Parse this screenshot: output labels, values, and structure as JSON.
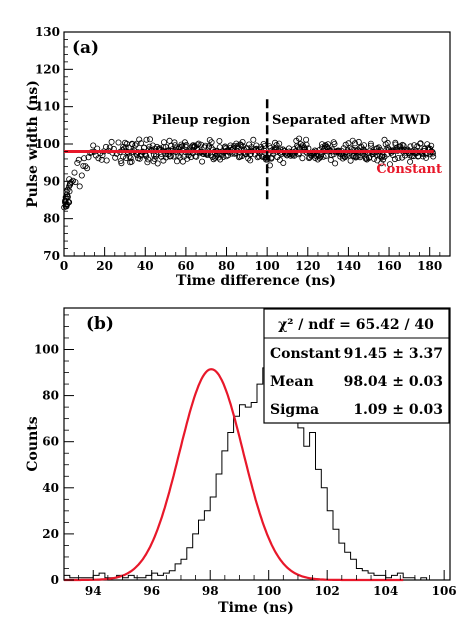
{
  "chart_data": [
    {
      "type": "scatter",
      "panel_label": "(a)",
      "xlabel": "Time difference (ns)",
      "ylabel": "Pulse width (ns)",
      "xlim": [
        0,
        190
      ],
      "ylim": [
        70,
        130
      ],
      "xticks": [
        0,
        20,
        40,
        60,
        80,
        100,
        120,
        140,
        160,
        180
      ],
      "yticks": [
        70,
        80,
        90,
        100,
        110,
        120,
        130
      ],
      "annotations": {
        "left_region": "Pileup region",
        "right_region": "Separated after MWD"
      },
      "separator_x": 100,
      "separator_y_range": [
        85,
        112
      ],
      "constant_line": {
        "label": "Constant",
        "value": 98.0,
        "x_range": [
          0,
          182
        ],
        "color": "#e8182a"
      },
      "marker": "open-circle",
      "series": [
        {
          "x_range": [
            0,
            182
          ],
          "trend": [
            {
              "x": 0.5,
              "y": 83
            },
            {
              "x": 1,
              "y": 84
            },
            {
              "x": 2,
              "y": 86
            },
            {
              "x": 3,
              "y": 88
            },
            {
              "x": 5,
              "y": 91
            },
            {
              "x": 8,
              "y": 94
            },
            {
              "x": 12,
              "y": 96
            },
            {
              "x": 18,
              "y": 97.3
            },
            {
              "x": 25,
              "y": 97.8
            },
            {
              "x": 40,
              "y": 98
            },
            {
              "x": 182,
              "y": 98
            }
          ],
          "spread": 2.2
        }
      ]
    },
    {
      "type": "histogram",
      "panel_label": "(b)",
      "xlabel": "Time (ns)",
      "ylabel": "Counts",
      "xlim": [
        93,
        106.2
      ],
      "ylim": [
        0,
        118
      ],
      "xticks": [
        94,
        96,
        98,
        100,
        102,
        104,
        106
      ],
      "yticks": [
        0,
        20,
        40,
        60,
        80,
        100
      ],
      "bin_start": 93.0,
      "bin_width": 0.2,
      "counts": [
        2,
        1,
        1,
        1,
        1,
        2,
        3,
        1,
        1,
        2,
        1,
        2,
        1,
        1,
        2,
        3,
        2,
        3,
        4,
        7,
        9,
        14,
        20,
        26,
        30,
        36,
        46,
        56,
        64,
        71,
        76,
        75,
        77,
        85,
        92,
        111,
        101,
        96,
        88,
        78,
        66,
        58,
        64,
        48,
        40,
        30,
        22,
        16,
        12,
        9,
        5,
        4,
        3,
        2,
        2,
        1,
        2,
        3,
        1,
        1,
        0,
        1,
        0,
        0,
        0,
        0,
        0
      ],
      "fit": {
        "constant": 91.45,
        "mean": 98.04,
        "sigma": 1.09,
        "x_range": [
          93,
          104.6
        ],
        "color": "#e8182a"
      },
      "stats_box": [
        {
          "label": "χ² / ndf = 65.42 / 40",
          "value": ""
        },
        {
          "label": "Constant",
          "value": "91.45 ± 3.37"
        },
        {
          "label": "Mean",
          "value": "98.04 ± 0.03"
        },
        {
          "label": "Sigma",
          "value": "1.09 ± 0.03"
        }
      ]
    }
  ]
}
